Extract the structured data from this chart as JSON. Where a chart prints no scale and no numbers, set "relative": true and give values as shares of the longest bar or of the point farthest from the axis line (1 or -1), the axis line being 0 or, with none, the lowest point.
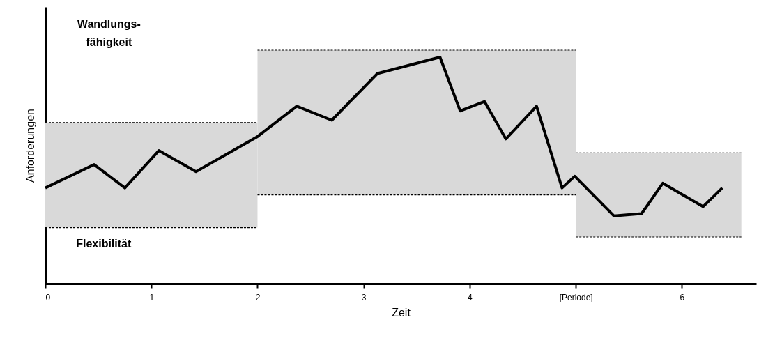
{
  "chart_data": {
    "type": "line",
    "relative": true,
    "xlabel": "Zeit",
    "ylabel": "Anforderungen",
    "xlim": [
      0,
      6.7
    ],
    "xticks": [
      0,
      1,
      2,
      3,
      4,
      {
        "value": 5,
        "label": "[Periode]"
      },
      6
    ],
    "marker": "none",
    "line_style": "solid",
    "annotations": [
      "Wandlungs-\nfähigkeit",
      "Flexibilität"
    ],
    "series": [
      {
        "color": "#000000",
        "line_style": "dashed",
        "x": [
          0,
          2
        ],
        "values": [
          0.69,
          0.69
        ],
        "lower": [
          0.24,
          0.24
        ],
        "upper": [
          0.69,
          0.69
        ]
      },
      {
        "color": "#000000",
        "line_style": "dashed",
        "x": [
          0,
          2
        ],
        "values": [
          0.24,
          0.24
        ]
      },
      {
        "color": "#000000",
        "line_style": "dashed",
        "x": [
          2,
          5
        ],
        "values": [
          1.0,
          1.0
        ],
        "lower": [
          0.38,
          0.38
        ],
        "upper": [
          1.0,
          1.0
        ]
      },
      {
        "color": "#000000",
        "line_style": "dashed",
        "x": [
          2,
          5
        ],
        "values": [
          0.38,
          0.38
        ]
      },
      {
        "color": "#000000",
        "line_style": "dashed",
        "x": [
          5,
          6.56
        ],
        "values": [
          0.56,
          0.56
        ],
        "lower": [
          0.2,
          0.2
        ],
        "upper": [
          0.56,
          0.56
        ]
      },
      {
        "color": "#000000",
        "line_style": "dashed",
        "x": [
          5,
          6.56
        ],
        "values": [
          0.2,
          0.2
        ]
      },
      {
        "color": "#000000",
        "x": [
          0,
          0.46,
          0.75,
          1.07,
          1.42,
          2.0,
          2.37,
          2.7,
          3.13,
          3.72,
          3.91,
          4.14,
          4.34,
          4.63,
          4.87,
          4.99,
          5.36,
          5.62,
          5.82,
          6.2,
          6.38
        ],
        "values": [
          0.41,
          0.51,
          0.41,
          0.57,
          0.48,
          0.63,
          0.76,
          0.7,
          0.9,
          0.97,
          0.74,
          0.78,
          0.62,
          0.76,
          0.41,
          0.46,
          0.29,
          0.3,
          0.43,
          0.33,
          0.41
        ]
      }
    ]
  }
}
